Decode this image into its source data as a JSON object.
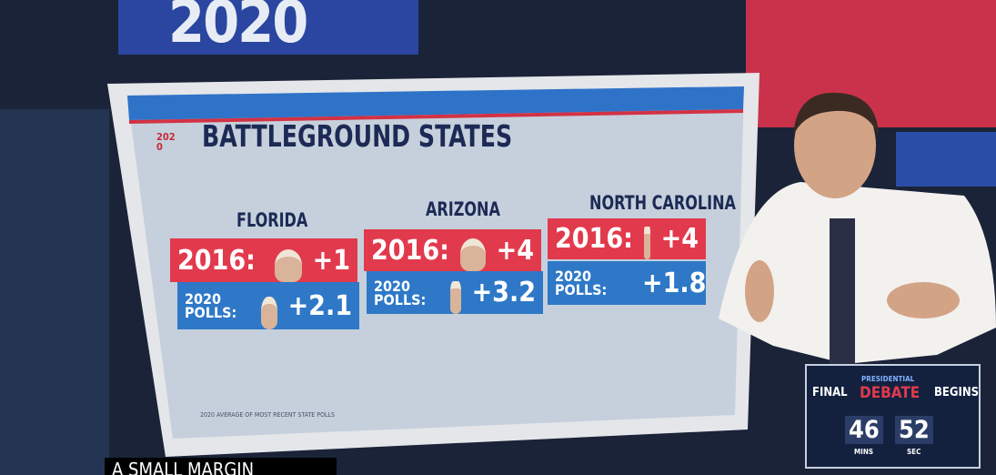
{
  "scene": {
    "backdrop_logo": "2020"
  },
  "board": {
    "logo": "2020",
    "title": "BATTLEGROUND STATES",
    "states": [
      {
        "name": "FLORIDA",
        "year_label": "2016:",
        "margin_2016": "+1",
        "polls_label": "2020 POLLS:",
        "polls_margin": "+2.1"
      },
      {
        "name": "ARIZONA",
        "year_label": "2016:",
        "margin_2016": "+4",
        "polls_label": "2020 POLLS:",
        "polls_margin": "+3.2"
      },
      {
        "name": "NORTH CAROLINA",
        "year_label": "2016:",
        "margin_2016": "+4",
        "polls_label": "2020 POLLS:",
        "polls_margin": "+1.8"
      }
    ],
    "footnote": "2020 AVERAGE OF MOST RECENT STATE POLLS"
  },
  "countdown": {
    "label_left": "FINAL",
    "event_top": "PRESIDENTIAL",
    "event": "DEBATE",
    "label_right": "BEGINS",
    "minutes": "46",
    "seconds": "52",
    "minutes_label": "MINS",
    "seconds_label": "SEC"
  },
  "caption": "A SMALL MARGIN"
}
